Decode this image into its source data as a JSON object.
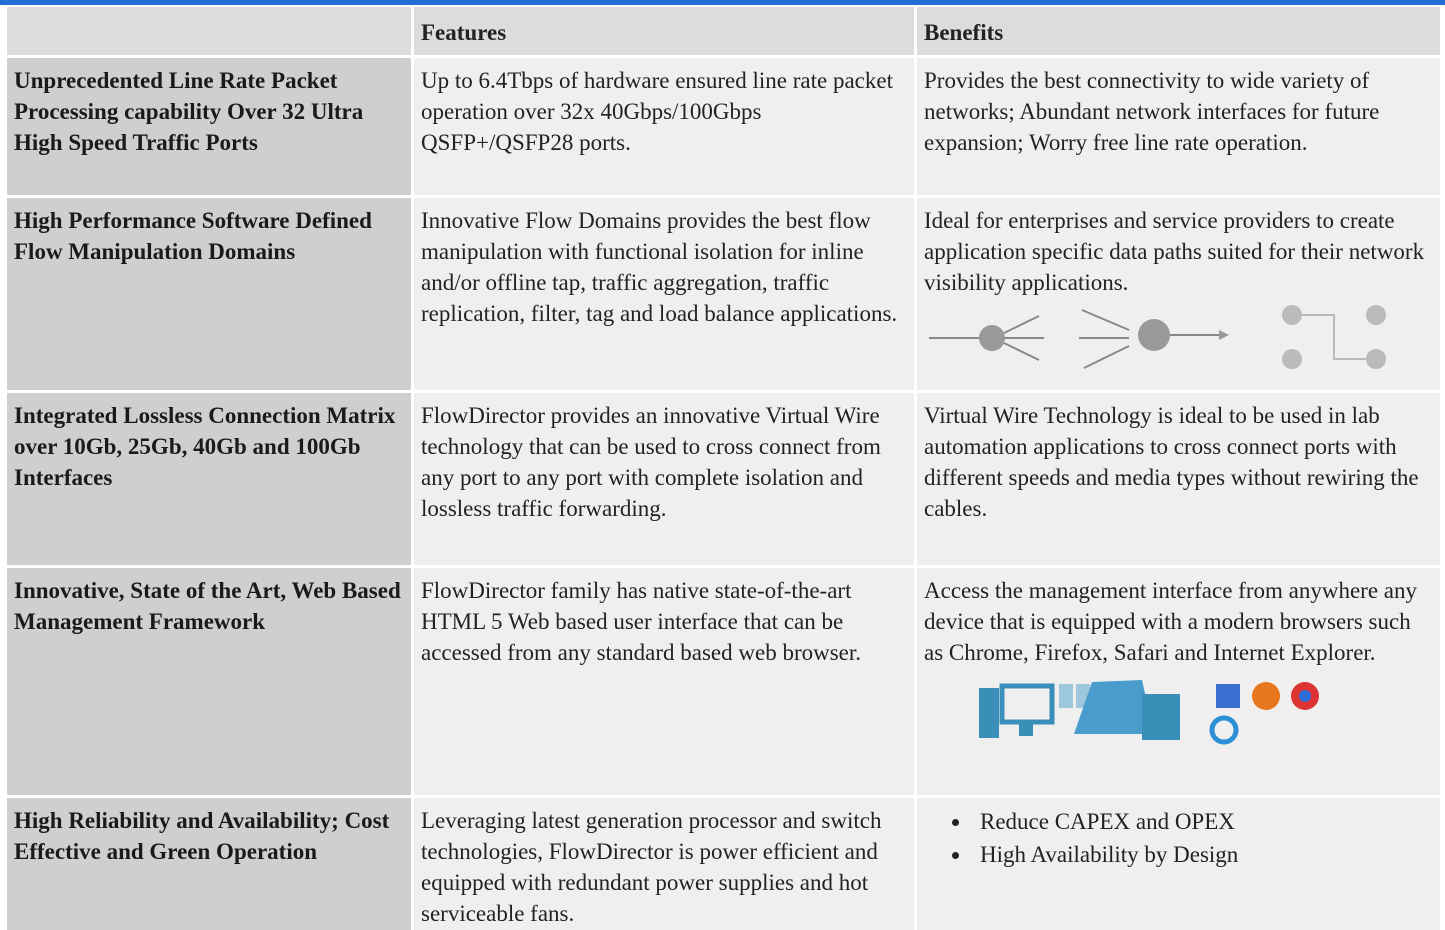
{
  "header": {
    "features": "Features",
    "benefits": "Benefits"
  },
  "rows": [
    {
      "title": "Unprecedented Line Rate Packet Processing capability Over 32 Ultra High Speed Traffic Ports",
      "features": "Up to 6.4Tbps of hardware ensured line rate packet operation  over 32x 40Gbps/100Gbps QSFP+/QSFP28 ports.",
      "benefits": "Provides the best connectivity to wide variety of networks; Abundant network interfaces for future expansion; Worry free line rate operation."
    },
    {
      "title": "High Performance Software Defined Flow Manipulation Domains",
      "features": "Innovative Flow Domains provides the best flow manipulation with functional isolation for inline and/or offline tap, traffic aggregation, traffic replication,  filter, tag and load balance applications.",
      "benefits": "Ideal for enterprises and service providers to create application specific data paths suited for their network visibility applications."
    },
    {
      "title": "Integrated Lossless Connection Matrix over 10Gb, 25Gb, 40Gb and 100Gb Interfaces",
      "features": "FlowDirector provides an innovative Virtual Wire technology that can be used to cross connect from any port to any port with complete isolation and lossless traffic forwarding.",
      "benefits": "Virtual Wire Technology is ideal to be used in lab automation applications to cross connect ports with different speeds and media types without rewiring the cables."
    },
    {
      "title": "Innovative, State of the Art, Web Based Management Framework",
      "features": "FlowDirector family has native state-of-the-art HTML 5 Web based user interface that can be accessed from any standard based web browser.",
      "benefits": "Access the management interface from anywhere any device that is equipped with a modern browsers such as Chrome, Firefox, Safari and Internet Explorer."
    },
    {
      "title": "High Reliability and Availability; Cost Effective and Green Operation",
      "features": "Leveraging latest generation processor and switch technologies, FlowDirector is power efficient and equipped with redundant power supplies and hot serviceable fans.",
      "benefits": [
        "Reduce CAPEX and OPEX",
        "High Availability by Design"
      ]
    }
  ]
}
